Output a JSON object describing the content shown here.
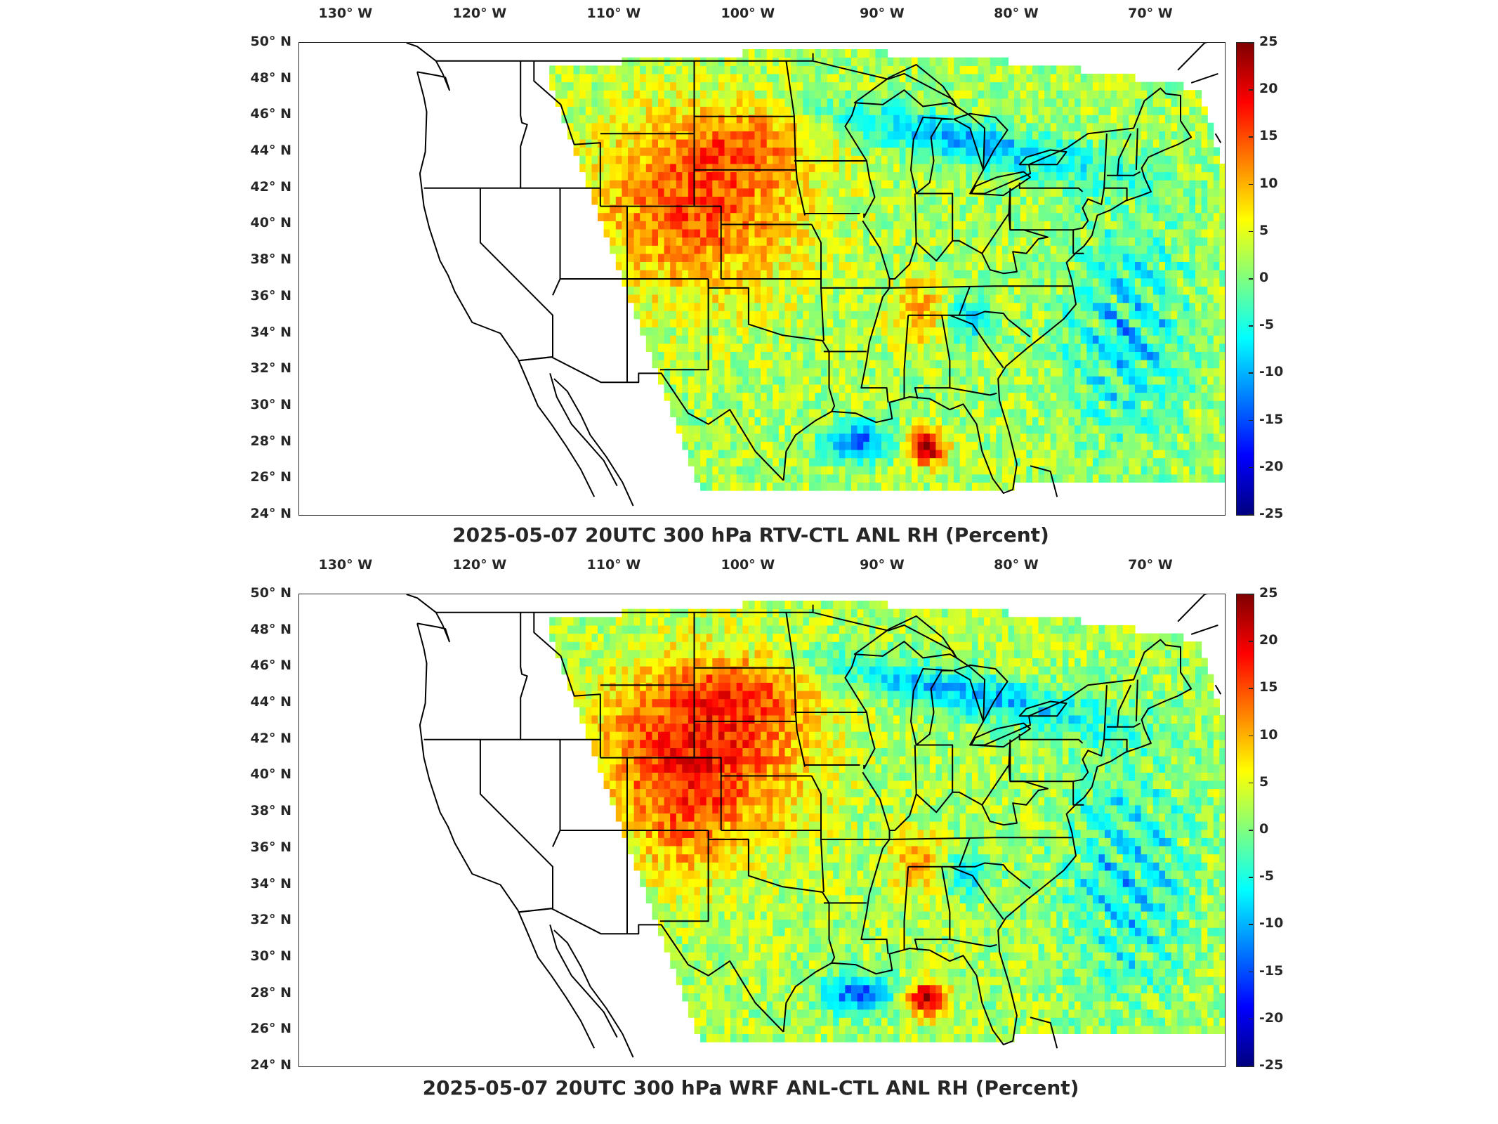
{
  "panels": [
    {
      "title": "2025-05-07 20UTC 300 hPa RTV-CTL ANL RH (Percent)",
      "variant": "rtv"
    },
    {
      "title": "2025-05-07 20UTC 300 hPa WRF ANL-CTL ANL RH (Percent)",
      "variant": "wrf"
    }
  ],
  "lon_labels": [
    "130° W",
    "120° W",
    "110° W",
    "100° W",
    "90° W",
    "80° W",
    "70° W"
  ],
  "lat_labels": [
    "50° N",
    "48° N",
    "46° N",
    "44° N",
    "42° N",
    "40° N",
    "38° N",
    "36° N",
    "34° N",
    "32° N",
    "30° N",
    "28° N",
    "26° N",
    "24° N"
  ],
  "colorbar": {
    "ticks": [
      "25",
      "20",
      "15",
      "10",
      "5",
      "0",
      "-5",
      "-10",
      "-15",
      "-20",
      "-25"
    ],
    "range": [
      -25,
      25
    ],
    "colormap": "jet",
    "colors": [
      "#00007f",
      "#0000ff",
      "#007fff",
      "#00ffff",
      "#7fff7f",
      "#ffff00",
      "#ff7f00",
      "#ff0000",
      "#7f0000"
    ]
  }
}
